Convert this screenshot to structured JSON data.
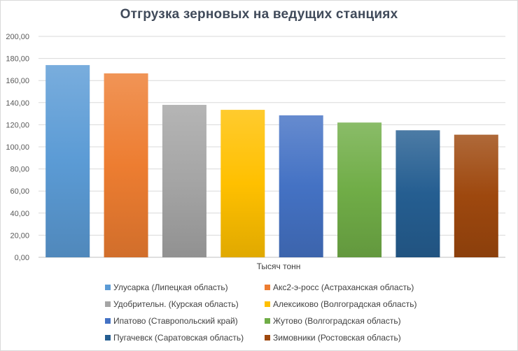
{
  "chart_data": {
    "type": "bar",
    "title": "Отгрузка зерновых на ведущих станциях",
    "xlabel": "Тысяч тонн",
    "ylabel": "",
    "ylim": [
      0,
      200
    ],
    "yticks": [
      "0,00",
      "20,00",
      "40,00",
      "60,00",
      "80,00",
      "100,00",
      "120,00",
      "140,00",
      "160,00",
      "180,00",
      "200,00"
    ],
    "grid": true,
    "legend_position": "bottom",
    "categories": [
      "Улусарка (Липецкая область)",
      "Акс2-э-росс (Астраханская область)",
      "Удобрительн.  (Курская область)",
      "Алексиково  (Волгоградская область)",
      "Ипатово (Ставропольский край)",
      "Жутово  (Волгоградская область)",
      "Пугачевск (Саратовская область)",
      "Зимовники  (Ростовская область)"
    ],
    "values": [
      174,
      166.5,
      138,
      133.5,
      128.5,
      122,
      115,
      111
    ],
    "colors": [
      "#5b9bd5",
      "#ed7d31",
      "#a5a5a5",
      "#ffc000",
      "#4472c4",
      "#70ad47",
      "#255e91",
      "#9e480e"
    ]
  }
}
